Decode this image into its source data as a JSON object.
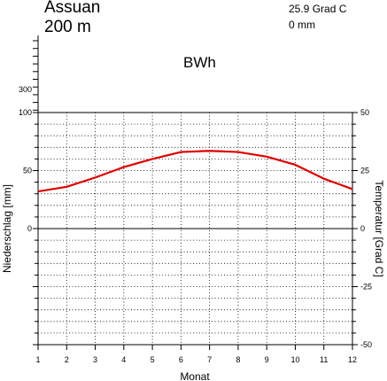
{
  "header": {
    "station": "Assuan",
    "elevation": "200 m",
    "mean_temperature": "25.9 Grad C",
    "annual_precipitation": "0 mm",
    "climate_class": "BWh"
  },
  "chart_data": {
    "type": "line",
    "title": "",
    "xlabel": "Monat",
    "ylabel_left": "Niederschlag [mm]",
    "ylabel_right": "Temperatur [Grad C]",
    "x": [
      1,
      2,
      3,
      4,
      5,
      6,
      7,
      8,
      9,
      10,
      11,
      12
    ],
    "x_ticks": [
      "1",
      "2",
      "3",
      "4",
      "5",
      "6",
      "7",
      "8",
      "9",
      "10",
      "11",
      "12"
    ],
    "precip_ticks": [
      "0",
      "50",
      "100",
      "300"
    ],
    "temp_ticks": [
      "-50",
      "-25",
      "0",
      "25",
      "50"
    ],
    "temp_lim": [
      -50,
      50
    ],
    "precip_lim": [
      0,
      100
    ],
    "grid": true,
    "series": [
      {
        "axis": "temperature",
        "color": "#dd0000",
        "values": [
          16,
          18,
          22,
          26.5,
          30,
          33,
          33.5,
          33,
          31,
          27.5,
          21.5,
          17
        ]
      },
      {
        "axis": "precipitation",
        "color": "#0000cc",
        "values": [
          0,
          0,
          0,
          0,
          0,
          0,
          0,
          0,
          0,
          0,
          0,
          0
        ]
      }
    ]
  }
}
